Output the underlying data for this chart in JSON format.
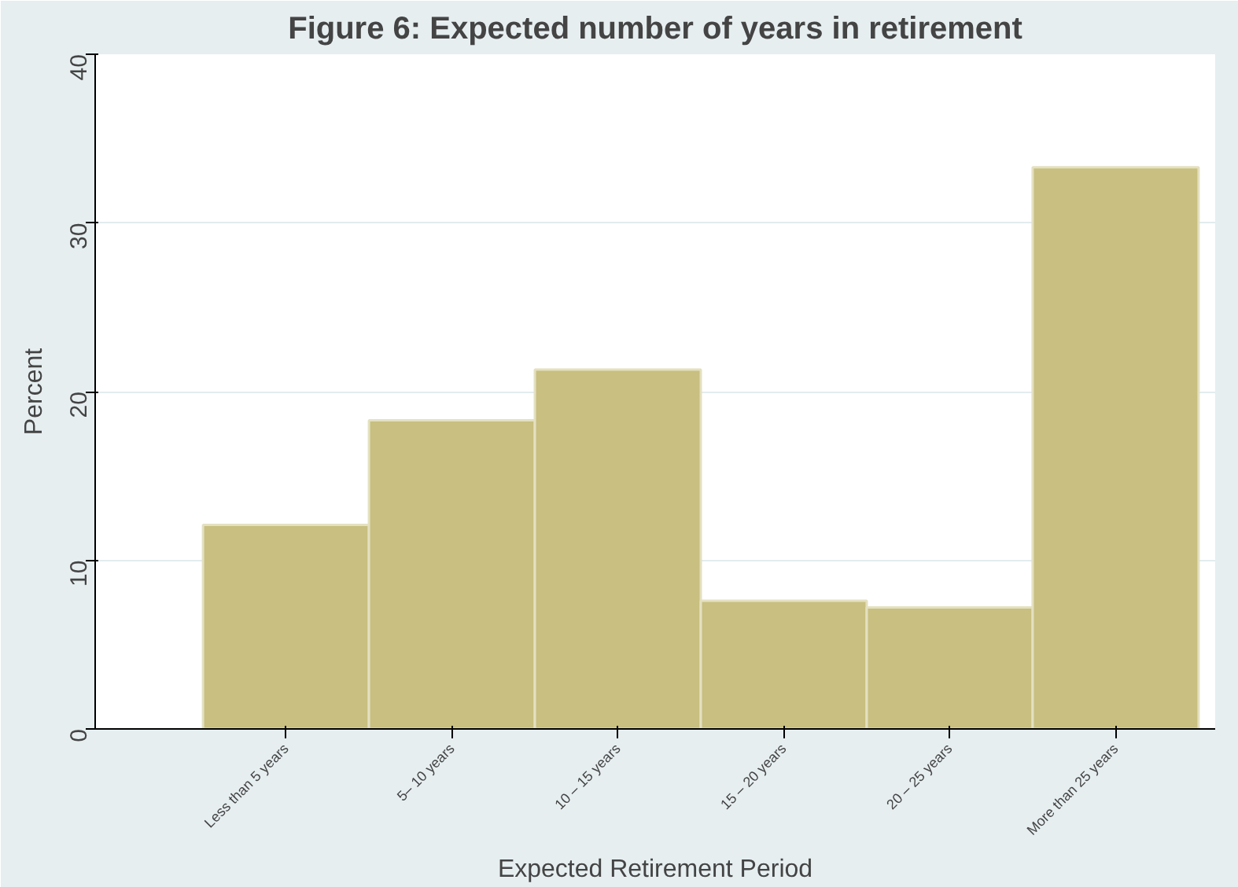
{
  "chart_data": {
    "type": "bar",
    "title": "Figure 6: Expected number of years in retirement",
    "xlabel": "Expected Retirement Period",
    "ylabel": "Percent",
    "categories": [
      "Less than 5 years",
      "5– 10 years",
      "10 – 15 years",
      "15 – 20 years",
      "20 – 25 years",
      "More than 25 years"
    ],
    "values": [
      12.1,
      18.3,
      21.3,
      7.6,
      7.2,
      33.3
    ],
    "color": "#c8bf80",
    "ylim": [
      0,
      40
    ],
    "yticks": [
      0,
      10,
      20,
      30,
      40
    ],
    "grid": "y"
  }
}
